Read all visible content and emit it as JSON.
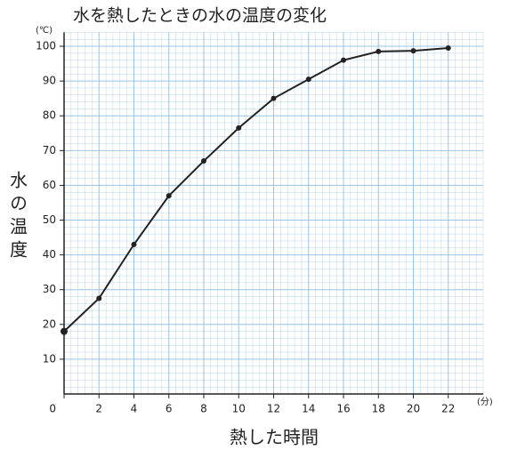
{
  "chart_data": {
    "type": "line",
    "title": "水を熱したときの水の温度の変化",
    "y_label": "水の温度",
    "y_unit": "(℃)",
    "x_label": "熱した時間",
    "x_unit": "(分)",
    "x": [
      0,
      2,
      4,
      6,
      8,
      10,
      12,
      14,
      16,
      18,
      20,
      22
    ],
    "series": [
      {
        "color": "#222222",
        "values": [
          18,
          27.5,
          43,
          57,
          67,
          76.5,
          85,
          90.5,
          96,
          98.5,
          98.7,
          99.5
        ]
      }
    ],
    "xlim": [
      0,
      24
    ],
    "ylim": [
      0,
      104
    ],
    "xticks": [
      0,
      2,
      4,
      6,
      8,
      10,
      12,
      14,
      16,
      18,
      20,
      22
    ],
    "yticks": [
      10,
      20,
      30,
      40,
      50,
      60,
      70,
      80,
      90,
      100
    ],
    "grid": true,
    "grid_color": "#9cc4e4"
  }
}
